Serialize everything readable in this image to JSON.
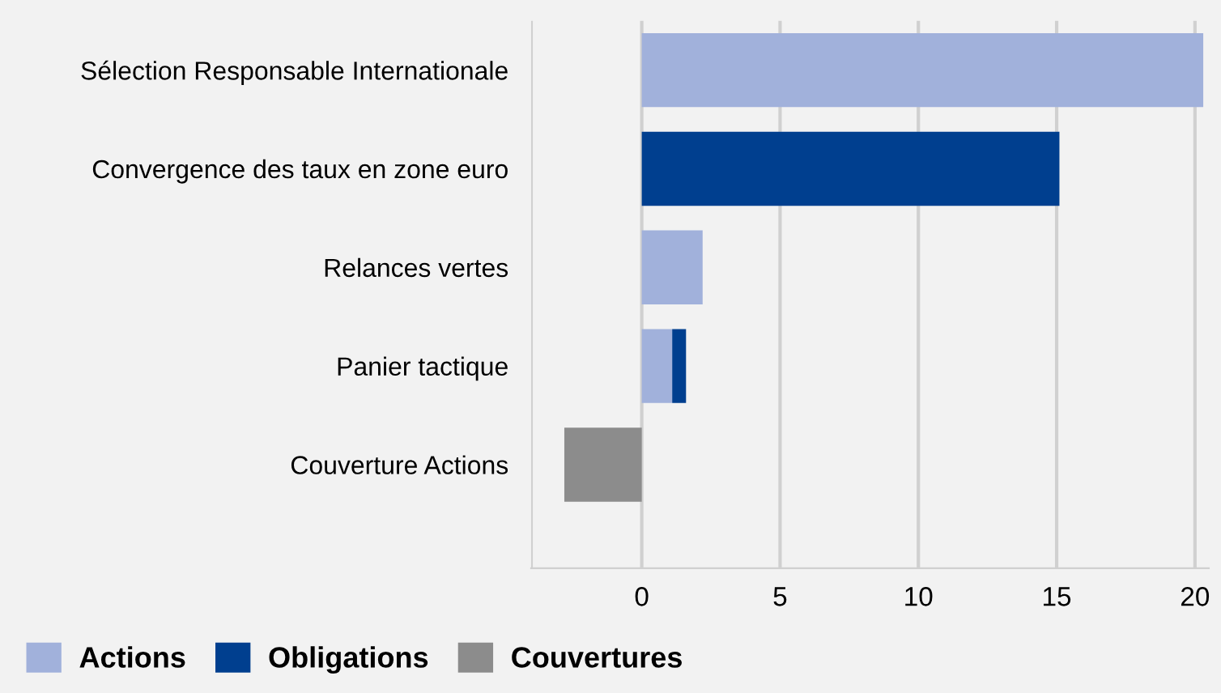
{
  "chart_data": {
    "type": "bar",
    "orientation": "horizontal",
    "stacked": true,
    "categories": [
      "Sélection Responsable Internationale",
      "Convergence des taux en zone euro",
      "Relances vertes",
      "Panier tactique",
      "Couverture Actions"
    ],
    "series": [
      {
        "name": "Actions",
        "color": "#a1b1db",
        "values": [
          20.3,
          null,
          2.2,
          1.1,
          null
        ]
      },
      {
        "name": "Obligations",
        "color": "#003f8f",
        "values": [
          null,
          15.1,
          null,
          0.5,
          null
        ]
      },
      {
        "name": "Couvertures",
        "color": "#8c8c8c",
        "values": [
          null,
          null,
          null,
          null,
          -2.8
        ]
      }
    ],
    "xlim": [
      -4,
      20.5
    ],
    "xticks": [
      {
        "value": -4,
        "label": null
      },
      0,
      5,
      10,
      15,
      20
    ],
    "grid": "x",
    "legend": "bottom left"
  }
}
